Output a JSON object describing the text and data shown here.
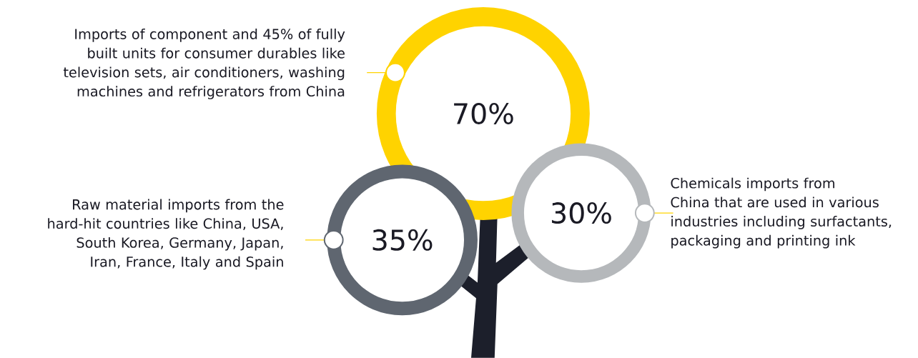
{
  "chart_data": {
    "type": "other",
    "categories": [
      "Imports of component and 45% of fully built units for consumer durables like television sets, air conditioners, washing machines and refrigerators from China",
      "Raw material imports from the hard-hit countries like China, USA, South Korea, Germany, Japan, Iran, France, Italy and Spain",
      "Chemicals imports from China that are used in various industries including surfactants, packaging and printing ink"
    ],
    "values": [
      70,
      35,
      30
    ],
    "value_labels": [
      "70%",
      "35%",
      "30%"
    ],
    "colors": [
      "#ffd300",
      "#5f6670",
      "#b5b8bb"
    ]
  }
}
